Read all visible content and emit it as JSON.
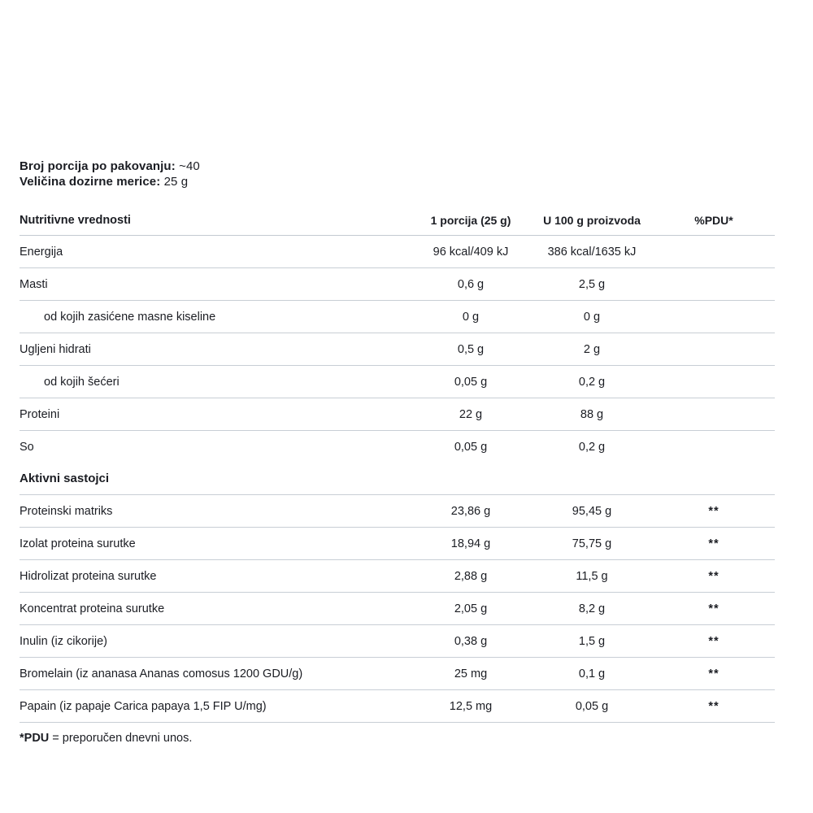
{
  "serving_info": {
    "servings_label": "Broj porcija po pakovanju:",
    "servings_value": "~40",
    "dose_label": "Veličina dozirne merice:",
    "dose_value": "25 g"
  },
  "table": {
    "headers": {
      "col1": "Nutritivne vrednosti",
      "col2": "1 porcija (25 g)",
      "col3": "U 100 g proizvoda",
      "col4": "%PDU*"
    },
    "rows": [
      {
        "label": "Energija",
        "per_serving": "96 kcal/409 kJ",
        "per_100g": "386 kcal/1635 kJ",
        "pdu": ""
      },
      {
        "label": "Masti",
        "per_serving": "0,6 g",
        "per_100g": "2,5 g",
        "pdu": ""
      },
      {
        "label": "od kojih zasićene masne kiseline",
        "per_serving": "0 g",
        "per_100g": "0 g",
        "pdu": "",
        "indent": true
      },
      {
        "label": "Ugljeni hidrati",
        "per_serving": "0,5 g",
        "per_100g": "2 g",
        "pdu": ""
      },
      {
        "label": "od kojih šećeri",
        "per_serving": "0,05 g",
        "per_100g": "0,2 g",
        "pdu": "",
        "indent": true
      },
      {
        "label": "Proteini",
        "per_serving": "22 g",
        "per_100g": "88 g",
        "pdu": ""
      },
      {
        "label": "So",
        "per_serving": "0,05 g",
        "per_100g": "0,2 g",
        "pdu": "",
        "noBorder": true
      },
      {
        "label": "Aktivni sastojci",
        "per_serving": "",
        "per_100g": "",
        "pdu": "",
        "section": true
      },
      {
        "label": "Proteinski matriks",
        "per_serving": "23,86 g",
        "per_100g": "95,45 g",
        "pdu": "**"
      },
      {
        "label": "Izolat proteina surutke",
        "per_serving": "18,94 g",
        "per_100g": "75,75 g",
        "pdu": "**"
      },
      {
        "label": "Hidrolizat proteina surutke",
        "per_serving": "2,88 g",
        "per_100g": "11,5 g",
        "pdu": "**"
      },
      {
        "label": "Koncentrat proteina surutke",
        "per_serving": "2,05 g",
        "per_100g": "8,2 g",
        "pdu": "**"
      },
      {
        "label": "Inulin (iz cikorije)",
        "per_serving": "0,38 g",
        "per_100g": "1,5 g",
        "pdu": "**"
      },
      {
        "label": "Bromelain (iz ananasa Ananas comosus 1200 GDU/g)",
        "per_serving": "25 mg",
        "per_100g": "0,1 g",
        "pdu": "**"
      },
      {
        "label": "Papain (iz papaje Carica papaya 1,5 FIP U/mg)",
        "per_serving": "12,5 mg",
        "per_100g": "0,05 g",
        "pdu": "**"
      }
    ]
  },
  "footnote": {
    "bold": "*PDU",
    "text": " = preporučen dnevni unos."
  },
  "colors": {
    "text": "#1b1d23",
    "divider": "#c8ced5",
    "background": "#ffffff"
  }
}
